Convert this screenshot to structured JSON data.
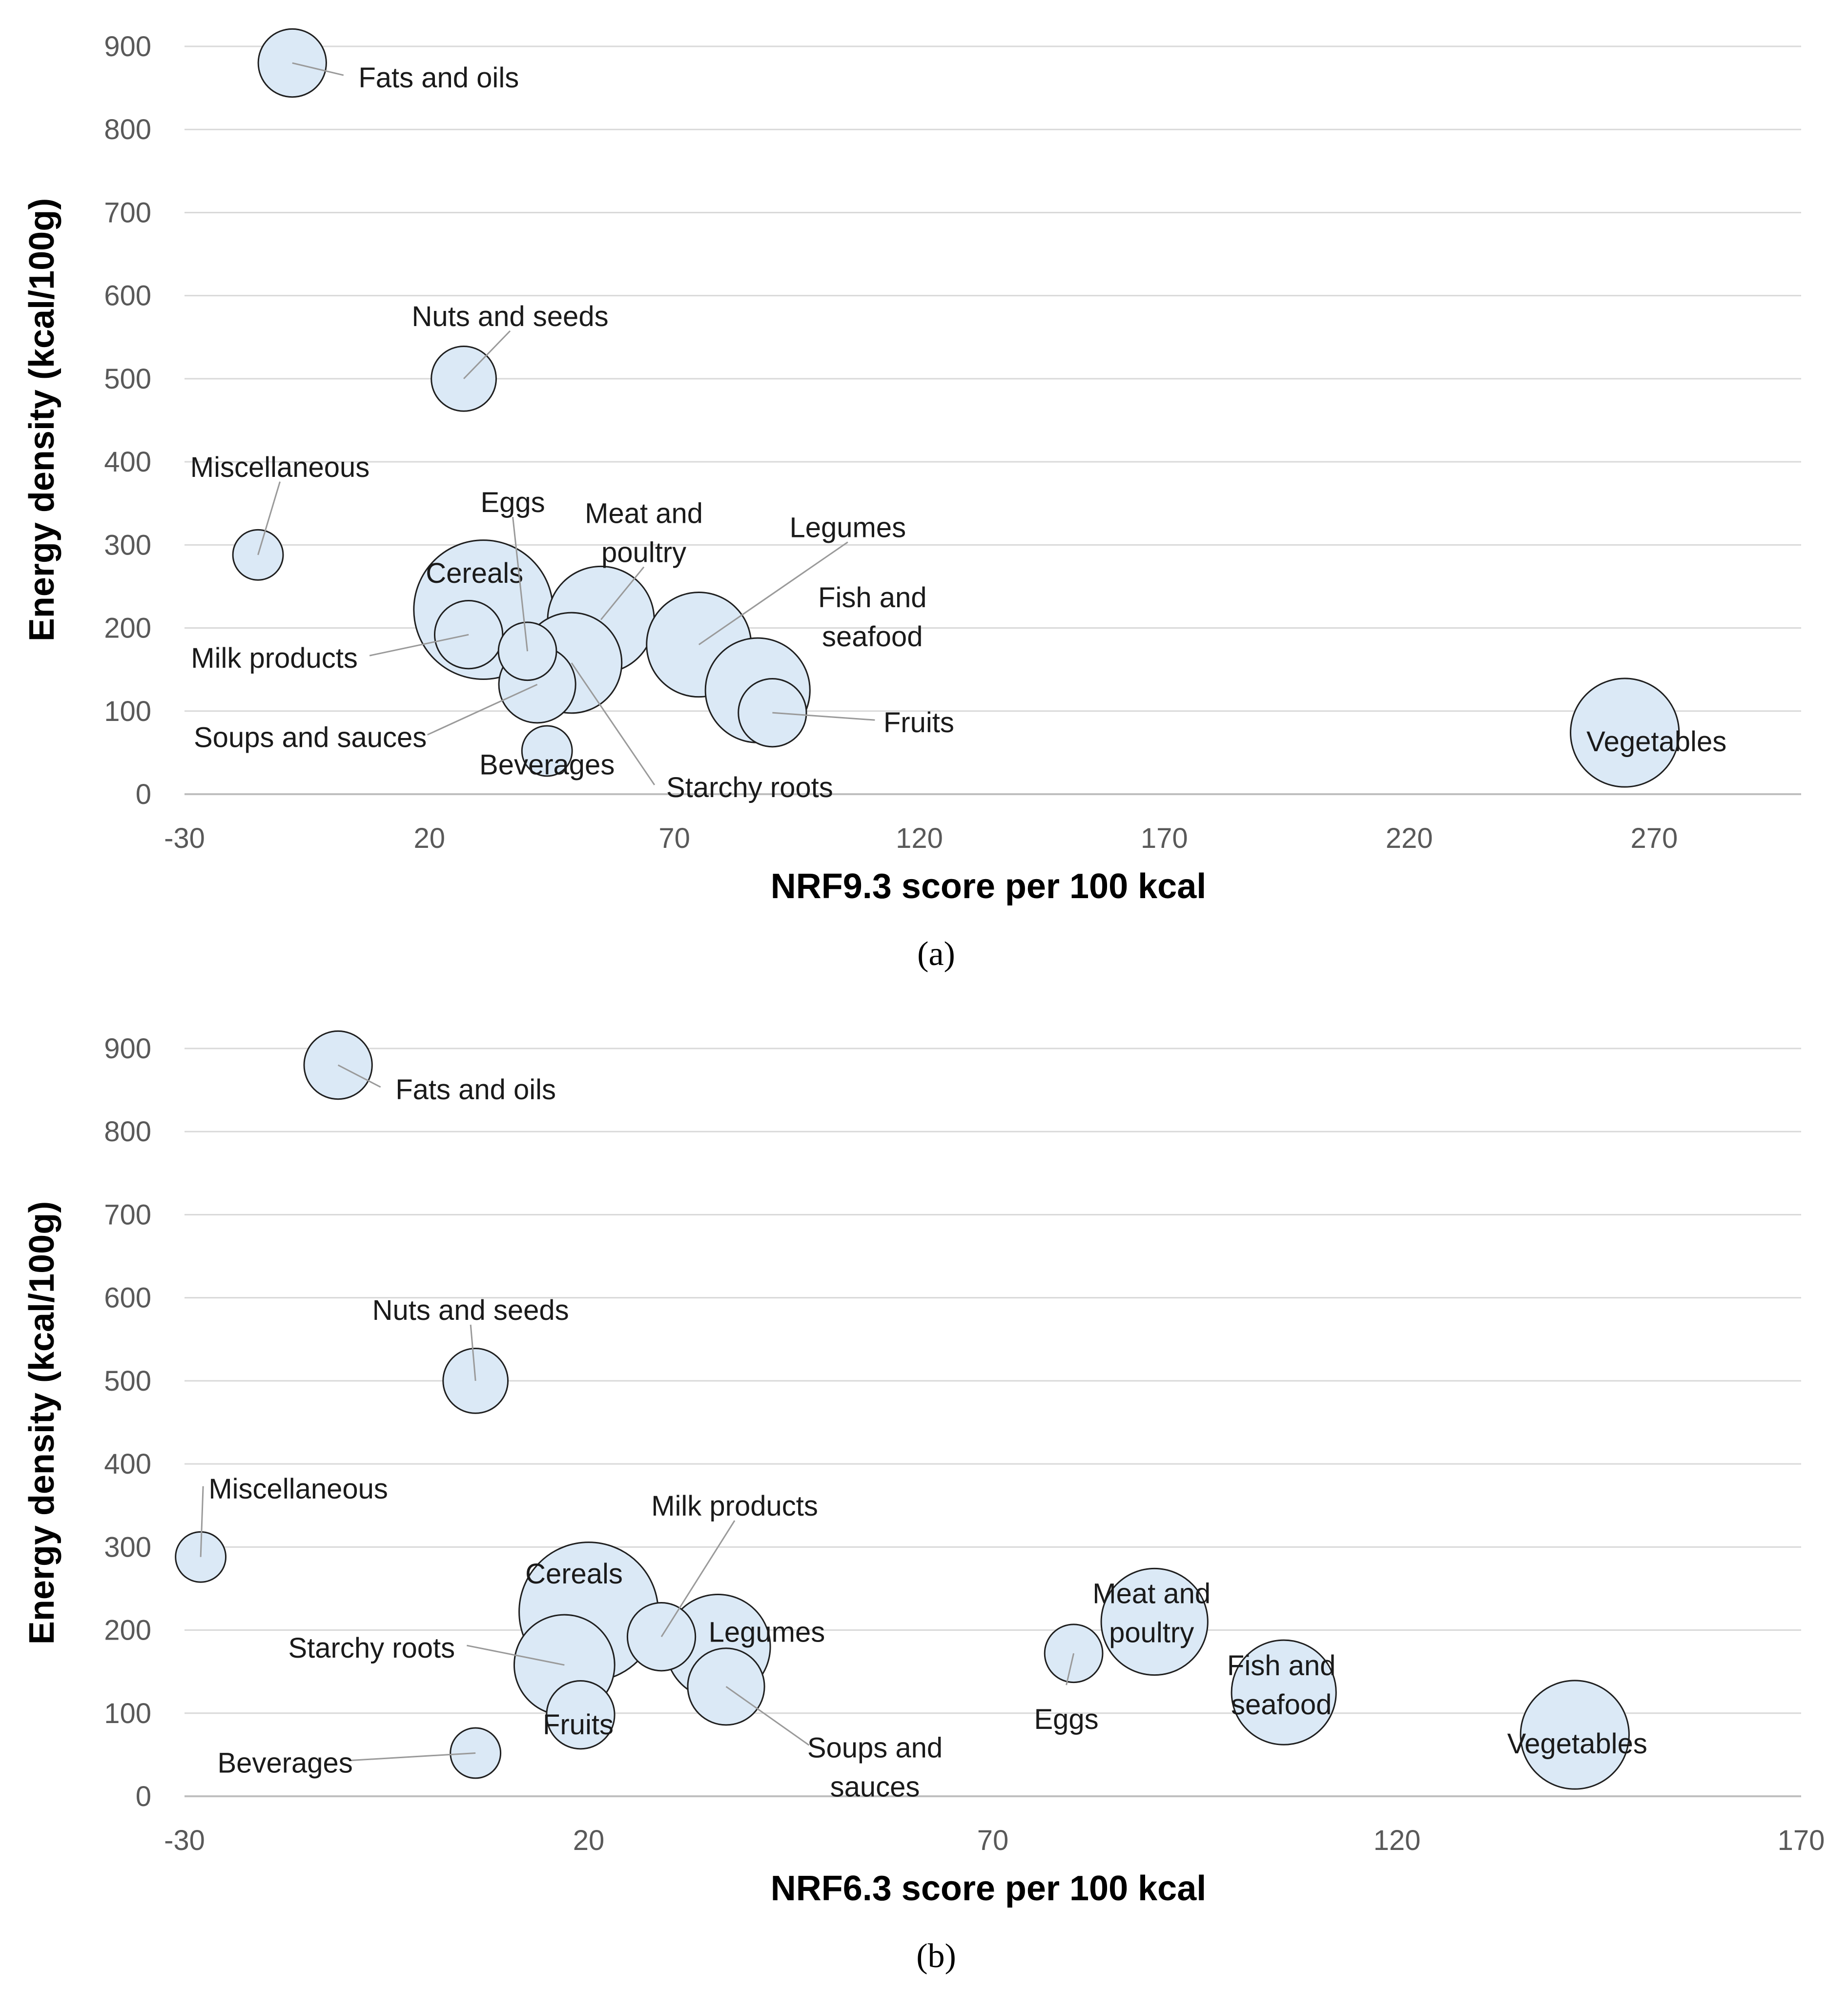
{
  "chart_data": [
    {
      "type": "bubble",
      "caption": "(a)",
      "xlabel": "NRF9.3 score per 100 kcal",
      "ylabel": "Energy density (kcal/100g)",
      "xlim": [
        -30,
        300
      ],
      "ylim": [
        0,
        900
      ],
      "xticks": [
        -30,
        20,
        70,
        120,
        170,
        220,
        270
      ],
      "yticks": [
        0,
        100,
        200,
        300,
        400,
        500,
        600,
        700,
        800,
        900
      ],
      "grid": "horizontal",
      "points": [
        {
          "name": "Fats and oils",
          "label": [
            "Fats and oils"
          ],
          "x": -8,
          "y": 880,
          "size": 11
        },
        {
          "name": "Nuts and seeds",
          "label": [
            "Nuts and seeds"
          ],
          "x": 27,
          "y": 500,
          "size": 10
        },
        {
          "name": "Miscellaneous",
          "label": [
            "Miscellaneous"
          ],
          "x": -15,
          "y": 288,
          "size": 6
        },
        {
          "name": "Cereals",
          "label": [
            "Cereals"
          ],
          "x": 31,
          "y": 222,
          "size": 46
        },
        {
          "name": "Meat and poultry",
          "label": [
            "Meat and",
            "poultry"
          ],
          "x": 55,
          "y": 210,
          "size": 27
        },
        {
          "name": "Legumes",
          "label": [
            "Legumes"
          ],
          "x": 75,
          "y": 180,
          "size": 26
        },
        {
          "name": "Starchy roots",
          "label": [
            "Starchy roots"
          ],
          "x": 49,
          "y": 158,
          "size": 24
        },
        {
          "name": "Milk products",
          "label": [
            "Milk products"
          ],
          "x": 28,
          "y": 192,
          "size": 11
        },
        {
          "name": "Eggs",
          "label": [
            "Eggs"
          ],
          "x": 40,
          "y": 172,
          "size": 8
        },
        {
          "name": "Soups and sauces",
          "label": [
            "Soups and sauces"
          ],
          "x": 42,
          "y": 132,
          "size": 14
        },
        {
          "name": "Fish and seafood",
          "label": [
            "Fish and",
            "seafood"
          ],
          "x": 87,
          "y": 125,
          "size": 26
        },
        {
          "name": "Fruits",
          "label": [
            "Fruits"
          ],
          "x": 90,
          "y": 98,
          "size": 11
        },
        {
          "name": "Beverages",
          "label": [
            "Beverages"
          ],
          "x": 44,
          "y": 52,
          "size": 6
        },
        {
          "name": "Vegetables",
          "label": [
            "Vegetables"
          ],
          "x": 264,
          "y": 74,
          "size": 28
        }
      ]
    },
    {
      "type": "bubble",
      "caption": "(b)",
      "xlabel": "NRF6.3 score per 100 kcal",
      "ylabel": "Energy density (kcal/100g)",
      "xlim": [
        -30,
        170
      ],
      "ylim": [
        0,
        900
      ],
      "xticks": [
        -30,
        20,
        70,
        120,
        170
      ],
      "yticks": [
        0,
        100,
        200,
        300,
        400,
        500,
        600,
        700,
        800,
        900
      ],
      "grid": "horizontal",
      "points": [
        {
          "name": "Fats and oils",
          "label": [
            "Fats and oils"
          ],
          "x": -11,
          "y": 880,
          "size": 11
        },
        {
          "name": "Nuts and seeds",
          "label": [
            "Nuts and seeds"
          ],
          "x": 6,
          "y": 500,
          "size": 10
        },
        {
          "name": "Miscellaneous",
          "label": [
            "Miscellaneous"
          ],
          "x": -28,
          "y": 288,
          "size": 6
        },
        {
          "name": "Cereals",
          "label": [
            "Cereals"
          ],
          "x": 20,
          "y": 222,
          "size": 46
        },
        {
          "name": "Legumes",
          "label": [
            "Legumes"
          ],
          "x": 36,
          "y": 180,
          "size": 26
        },
        {
          "name": "Milk products",
          "label": [
            "Milk products"
          ],
          "x": 29,
          "y": 192,
          "size": 11
        },
        {
          "name": "Starchy roots",
          "label": [
            "Starchy roots"
          ],
          "x": 17,
          "y": 158,
          "size": 24
        },
        {
          "name": "Soups and sauces",
          "label": [
            "Soups and",
            "sauces"
          ],
          "x": 37,
          "y": 132,
          "size": 14
        },
        {
          "name": "Fruits",
          "label": [
            "Fruits"
          ],
          "x": 19,
          "y": 98,
          "size": 11
        },
        {
          "name": "Beverages",
          "label": [
            "Beverages"
          ],
          "x": 6,
          "y": 52,
          "size": 6
        },
        {
          "name": "Eggs",
          "label": [
            "Eggs"
          ],
          "x": 80,
          "y": 172,
          "size": 8
        },
        {
          "name": "Meat and poultry",
          "label": [
            "Meat and",
            "poultry"
          ],
          "x": 90,
          "y": 210,
          "size": 27
        },
        {
          "name": "Fish and seafood",
          "label": [
            "Fish and",
            "seafood"
          ],
          "x": 106,
          "y": 125,
          "size": 26
        },
        {
          "name": "Vegetables",
          "label": [
            "Vegetables"
          ],
          "x": 142,
          "y": 74,
          "size": 28
        }
      ]
    }
  ]
}
